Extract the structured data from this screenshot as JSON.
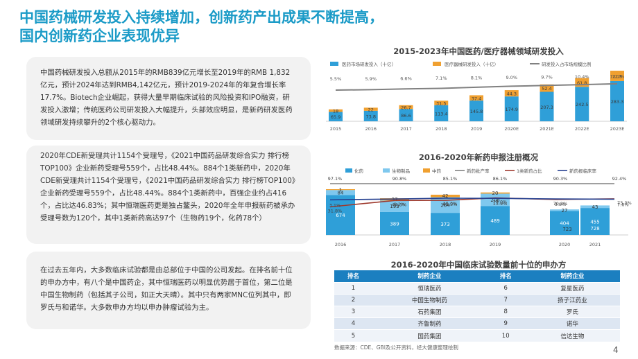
{
  "title_line1": "中国药械研发投入持续增加，创新药产出成果不断提高，",
  "title_line2": "国内创新药企业表现优异",
  "box1_text": "中国药械研发投入总额从2015年的RMB839亿元增长至2019年的RMB 1,832亿元，预计2024年达到RMB4,142亿元，预计2019-2024年的年复合增长率17.7%。Biotech企业崛起，获得大量早期临床试验的风险投资和IPO融资，研发投入激增；传统医药公司研发投入大幅提升，头部效应明显，是新药研发医药领域研发持续攀升的2个核心驱动力。",
  "box2_text": "2020年CDE新受理共计1154个受理号，《2021中国药品研发综合实力 排行榜TOP100》企业新药受理号559个，占比48.44%。884个1类新药中，2020年CDE新受理共计1154个受理号，《2021中国药品研发综合实力 排行榜TOP100》企业新药受理号559个，占比48.44%。884个1类新药中，百强企业约占416个，占比达46.83%；其中恒瑞医药更是独占鳌头，2020年全年申报新药被承办受理号数为120个，其中1类新药高达97个（生物药19个，化药78个）",
  "box3_text": "在过去五年内，大多数临床试验都是由总部位于中国的公司发起。在排名前十位的申办方中，有八个是中国药企，其中恒瑞医药以明显优势居于首位，第二位是中国生物制药（包括其子公司，如正大天晴）。其中只有两家MNC位列其中，即罗氏与和诺华。大多数申办方均以申办肿瘤试验为主。",
  "chart1_title": "2015-2023年中国医药/医疗器械领域研发投入",
  "chart2_title": "2016-2020年新药申报注册概况",
  "table_title": "2016-2020年中国临床试验数量前十位的申办方",
  "table_headers": [
    "排名",
    "制药企业",
    "排名",
    "制药企业"
  ],
  "table_rows": [
    [
      "1",
      "恒瑞医药",
      "6",
      "复星医药"
    ],
    [
      "2",
      "中国生物制药",
      "7",
      "扬子江药业"
    ],
    [
      "3",
      "石药集团",
      "8",
      "罗氏"
    ],
    [
      "4",
      "齐鲁制药",
      "9",
      "诺华"
    ],
    [
      "5",
      "国药集团",
      "10",
      "信达生物"
    ]
  ],
  "source": "数据来源：CDE、GBI及公开资料，经大健康整理绘制",
  "page_number": "4",
  "colors": {
    "accent": "#1b9bc7",
    "blue": "#2f9fd8",
    "orange": "#f0a030",
    "gray_line": "#808080",
    "navy": "#243f8f",
    "darkred": "#9e3a2e",
    "table_header": "#1b7fc0"
  },
  "chart_data": [
    {
      "type": "bar",
      "title": "2015-2023年中国医药/医疗器械领域研发投入",
      "categories": [
        "2015",
        "2016",
        "2017",
        "2018",
        "2019",
        "2020E",
        "2021E",
        "2022E",
        "2023E"
      ],
      "series": [
        {
          "name": "医药市场研发投入（十亿）",
          "values": [
            65.9,
            73.8,
            86.6,
            113.4,
            145.8,
            174.9,
            207.3,
            242.5,
            283.3
          ]
        },
        {
          "name": "医疗器械研发投入（十亿）",
          "values": [
            18.0,
            22.0,
            26.7,
            31.5,
            37.4,
            44.3,
            52.4,
            61.8,
            72.8
          ]
        },
        {
          "name": "研发投入占市场规模比例",
          "values": [
            "5.5%",
            "5.9%",
            "6.6%",
            "7.1%",
            "8.1%",
            "9.0%",
            "9.7%",
            "10.4%",
            "11.2%"
          ],
          "numeric": [
            5.5,
            5.9,
            6.6,
            7.1,
            8.1,
            9.0,
            9.7,
            10.4,
            11.2
          ]
        }
      ],
      "stacked": true
    },
    {
      "type": "bar",
      "title": "2016-2020年新药申报注册概况",
      "categories": [
        "2016",
        "2017",
        "2018",
        "2019",
        "2020",
        "2021"
      ],
      "series": [
        {
          "name": "化药",
          "values": [
            674,
            389,
            373,
            489,
            404,
            455
          ]
        },
        {
          "name": "生物制品",
          "values": [
            84,
            193,
            264,
            208,
            27,
            43
          ]
        },
        {
          "name": "中药",
          "values": [
            1,
            37,
            42,
            20,
            null,
            null
          ]
        }
      ],
      "totals": [
        null,
        null,
        null,
        null,
        723,
        728
      ],
      "lines": [
        {
          "name": "新药批产率",
          "labels": [
            "97.1%",
            "90.8%",
            "85.1%",
            "86.1%",
            "90.3%",
            "92.4%"
          ],
          "values": [
            97.1,
            90.8,
            85.1,
            86.1,
            90.3,
            92.4
          ]
        },
        {
          "name": "1类新药占比",
          "labels": [
            "31.8%",
            "64.5%",
            "65.5%",
            "78.0%",
            "70.1%",
            "73.3%"
          ],
          "values": [
            31.8,
            64.5,
            65.5,
            78.0,
            70.1,
            73.3
          ]
        },
        {
          "name": "新药报临床率",
          "labels": [
            "3.1%",
            "9.2%",
            "15.0%",
            "13.9%",
            "9.8%",
            "7.6%"
          ],
          "values": [
            3.1,
            9.2,
            15.0,
            13.9,
            9.8,
            7.6
          ]
        }
      ]
    }
  ]
}
